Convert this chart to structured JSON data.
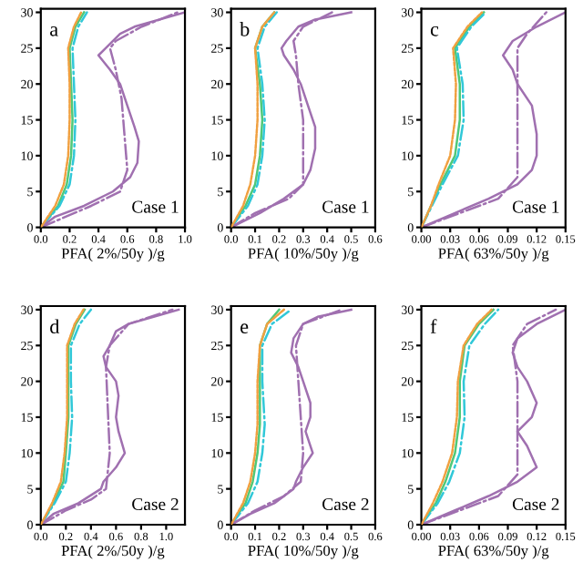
{
  "chart_data": [
    {
      "type": "line",
      "title": "a",
      "xlabel": "PFA( 2%/50y )/g",
      "annotations": [
        "Case 1"
      ],
      "xlim": [
        0,
        1.0
      ],
      "ylim": [
        0,
        30.5
      ],
      "xticks": [
        {
          "value": 0,
          "label": "0.0"
        },
        {
          "value": 0.2,
          "label": "0.2"
        },
        {
          "value": 0.4,
          "label": "0.4"
        },
        {
          "value": 0.6,
          "label": "0.6"
        },
        {
          "value": 0.8,
          "label": "0.8"
        },
        {
          "value": 1.0,
          "label": "1.0"
        }
      ],
      "yticks": [
        0,
        5,
        10,
        15,
        20,
        25,
        30
      ],
      "grid": false,
      "series": [
        {
          "color": "#f0a040",
          "line_style": "dashed",
          "x": [
            0,
            0.1,
            0.16,
            0.19,
            0.2,
            0.2,
            0.19,
            0.23,
            0.28
          ],
          "values": [
            0,
            3,
            6,
            10,
            15,
            20,
            25,
            28,
            30
          ]
        },
        {
          "color": "#50c878",
          "line_style": "solid",
          "x": [
            0,
            0.12,
            0.18,
            0.21,
            0.22,
            0.21,
            0.2,
            0.24,
            0.3
          ],
          "values": [
            0,
            3,
            6,
            10,
            15,
            20,
            25,
            28,
            30
          ]
        },
        {
          "color": "#30c8d8",
          "line_style": "dashdot",
          "x": [
            0,
            0.13,
            0.2,
            0.23,
            0.24,
            0.23,
            0.22,
            0.26,
            0.32
          ],
          "values": [
            0,
            3,
            6,
            10,
            15,
            20,
            25,
            28,
            30
          ]
        },
        {
          "color": "#a070b0",
          "line_style": "solid",
          "x": [
            0,
            0.1,
            0.3,
            0.5,
            0.62,
            0.67,
            0.68,
            0.65,
            0.6,
            0.55,
            0.48,
            0.4,
            0.45,
            0.55,
            0.65,
            1.0
          ],
          "values": [
            0,
            1.5,
            3,
            5,
            7,
            9,
            12,
            14,
            17,
            20,
            22,
            24,
            25,
            27,
            28,
            30
          ]
        },
        {
          "color": "#a070b0",
          "line_style": "dashdot",
          "x": [
            0,
            0.35,
            0.55,
            0.6,
            0.58,
            0.56,
            0.52,
            0.48,
            0.52,
            0.7,
            0.95
          ],
          "values": [
            0,
            3,
            5,
            8,
            13,
            18,
            22,
            25,
            26,
            28,
            30
          ]
        }
      ]
    },
    {
      "type": "line",
      "title": "b",
      "xlabel": "PFA( 10%/50y )/g",
      "annotations": [
        "Case 1"
      ],
      "xlim": [
        0,
        0.6
      ],
      "ylim": [
        0,
        30.5
      ],
      "xticks": [
        {
          "value": 0,
          "label": "0.0"
        },
        {
          "value": 0.1,
          "label": "0.1"
        },
        {
          "value": 0.2,
          "label": "0.2"
        },
        {
          "value": 0.3,
          "label": "0.3"
        },
        {
          "value": 0.4,
          "label": "0.4"
        },
        {
          "value": 0.5,
          "label": "0.5"
        },
        {
          "value": 0.6,
          "label": "0.6"
        }
      ],
      "yticks": [
        0,
        5,
        10,
        15,
        20,
        25,
        30
      ],
      "grid": false,
      "series": [
        {
          "color": "#f0a040",
          "line_style": "dashed",
          "x": [
            0,
            0.05,
            0.08,
            0.1,
            0.11,
            0.11,
            0.1,
            0.13,
            0.18
          ],
          "values": [
            0,
            3,
            6,
            10,
            15,
            20,
            25,
            28,
            30
          ]
        },
        {
          "color": "#50c878",
          "line_style": "solid",
          "x": [
            0,
            0.06,
            0.1,
            0.12,
            0.13,
            0.12,
            0.1,
            0.13,
            0.18
          ],
          "values": [
            0,
            3,
            6,
            10,
            15,
            20,
            25,
            28,
            30
          ]
        },
        {
          "color": "#30c8d8",
          "line_style": "dashdot",
          "x": [
            0,
            0.07,
            0.11,
            0.13,
            0.14,
            0.13,
            0.11,
            0.14,
            0.19
          ],
          "values": [
            0,
            3,
            6,
            10,
            15,
            20,
            25,
            28,
            30
          ]
        },
        {
          "color": "#a070b0",
          "line_style": "solid",
          "x": [
            0,
            0.12,
            0.22,
            0.3,
            0.33,
            0.35,
            0.35,
            0.32,
            0.29,
            0.26,
            0.22,
            0.21,
            0.23,
            0.28,
            0.35,
            0.5
          ],
          "values": [
            0,
            2,
            4,
            6,
            8,
            11,
            14,
            17,
            20,
            22,
            24,
            25,
            26,
            28,
            29,
            30
          ]
        },
        {
          "color": "#a070b0",
          "line_style": "dashdot",
          "x": [
            0,
            0.1,
            0.24,
            0.3,
            0.3,
            0.3,
            0.28,
            0.27,
            0.26,
            0.3,
            0.42
          ],
          "values": [
            0,
            2,
            4,
            6,
            10,
            15,
            20,
            24,
            26,
            28,
            30
          ]
        }
      ]
    },
    {
      "type": "line",
      "title": "c",
      "xlabel": "PFA( 63%/50y )/g",
      "annotations": [
        "Case 1"
      ],
      "xlim": [
        0,
        0.15
      ],
      "ylim": [
        0,
        30.5
      ],
      "xticks": [
        {
          "value": 0,
          "label": "0.00"
        },
        {
          "value": 0.03,
          "label": "0.03"
        },
        {
          "value": 0.06,
          "label": "0.06"
        },
        {
          "value": 0.09,
          "label": "0.09"
        },
        {
          "value": 0.12,
          "label": "0.12"
        },
        {
          "value": 0.15,
          "label": "0.15"
        }
      ],
      "yticks": [
        0,
        5,
        10,
        15,
        20,
        25,
        30
      ],
      "grid": false,
      "series": [
        {
          "color": "#f0a040",
          "line_style": "dashed",
          "x": [
            0,
            0.01,
            0.018,
            0.03,
            0.035,
            0.036,
            0.033,
            0.048,
            0.063
          ],
          "values": [
            0,
            3,
            6,
            10,
            15,
            20,
            25,
            28,
            30
          ]
        },
        {
          "color": "#50c878",
          "line_style": "solid",
          "x": [
            0,
            0.01,
            0.02,
            0.035,
            0.04,
            0.04,
            0.035,
            0.05,
            0.065
          ],
          "values": [
            0,
            3,
            6,
            10,
            15,
            20,
            25,
            28,
            30
          ]
        },
        {
          "color": "#30c8d8",
          "line_style": "dashdot",
          "x": [
            0,
            0.011,
            0.022,
            0.038,
            0.044,
            0.043,
            0.037,
            0.052,
            0.067
          ],
          "values": [
            0,
            3,
            6,
            10,
            15,
            20,
            25,
            28,
            30
          ]
        },
        {
          "color": "#a070b0",
          "line_style": "solid",
          "x": [
            0,
            0.035,
            0.07,
            0.1,
            0.115,
            0.12,
            0.12,
            0.115,
            0.1,
            0.095,
            0.085,
            0.095,
            0.12,
            0.15
          ],
          "values": [
            0,
            2,
            4,
            6,
            8,
            10,
            13,
            17,
            20,
            22,
            24,
            26,
            28,
            30
          ]
        },
        {
          "color": "#a070b0",
          "line_style": "dashdot",
          "x": [
            0,
            0.04,
            0.08,
            0.1,
            0.1,
            0.1,
            0.1,
            0.1,
            0.11,
            0.13
          ],
          "values": [
            0,
            2,
            4,
            7,
            10,
            15,
            20,
            25,
            27,
            30
          ]
        }
      ]
    },
    {
      "type": "line",
      "title": "d",
      "xlabel": "PFA( 2%/50y )/g",
      "annotations": [
        "Case 2"
      ],
      "xlim": [
        0,
        1.15
      ],
      "ylim": [
        0,
        30.5
      ],
      "xticks": [
        {
          "value": 0,
          "label": "0.0"
        },
        {
          "value": 0.2,
          "label": "0.2"
        },
        {
          "value": 0.4,
          "label": "0.4"
        },
        {
          "value": 0.6,
          "label": "0.6"
        },
        {
          "value": 0.8,
          "label": "0.8"
        },
        {
          "value": 1.0,
          "label": "1.0"
        }
      ],
      "yticks": [
        0,
        5,
        10,
        15,
        20,
        25,
        30
      ],
      "grid": false,
      "series": [
        {
          "color": "#f0a040",
          "line_style": "dashed",
          "x": [
            0,
            0.09,
            0.16,
            0.19,
            0.21,
            0.21,
            0.21,
            0.27,
            0.34
          ],
          "values": [
            0,
            3,
            6,
            10,
            15,
            20,
            25,
            28,
            30
          ]
        },
        {
          "color": "#50c878",
          "line_style": "solid",
          "x": [
            0,
            0.1,
            0.18,
            0.2,
            0.22,
            0.22,
            0.22,
            0.28,
            0.35
          ],
          "values": [
            0,
            3,
            6,
            10,
            15,
            20,
            25,
            28,
            30
          ]
        },
        {
          "color": "#30c8d8",
          "line_style": "dashdot",
          "x": [
            0,
            0.11,
            0.2,
            0.23,
            0.25,
            0.24,
            0.24,
            0.31,
            0.4
          ],
          "values": [
            0,
            3,
            6,
            10,
            15,
            20,
            25,
            28,
            30
          ]
        },
        {
          "color": "#a070b0",
          "line_style": "solid",
          "x": [
            0,
            0.1,
            0.3,
            0.48,
            0.5,
            0.6,
            0.67,
            0.62,
            0.6,
            0.62,
            0.6,
            0.52,
            0.5,
            0.55,
            0.6,
            0.7,
            0.9,
            1.1
          ],
          "values": [
            0,
            1.5,
            3,
            5,
            6,
            8,
            10,
            13,
            15,
            18,
            20,
            22,
            23.5,
            25,
            27,
            28,
            29,
            30
          ]
        },
        {
          "color": "#a070b0",
          "line_style": "dashdot",
          "x": [
            0,
            0.2,
            0.4,
            0.52,
            0.55,
            0.54,
            0.53,
            0.52,
            0.55,
            0.7,
            1.05
          ],
          "values": [
            0,
            2,
            3.5,
            5,
            10,
            14,
            18,
            22,
            25,
            28,
            30
          ]
        }
      ]
    },
    {
      "type": "line",
      "title": "e",
      "xlabel": "PFA( 10%/50y )/g",
      "annotations": [
        "Case 2"
      ],
      "xlim": [
        0,
        0.6
      ],
      "ylim": [
        0,
        30.5
      ],
      "xticks": [
        {
          "value": 0,
          "label": "0.0"
        },
        {
          "value": 0.1,
          "label": "0.1"
        },
        {
          "value": 0.2,
          "label": "0.2"
        },
        {
          "value": 0.3,
          "label": "0.3"
        },
        {
          "value": 0.4,
          "label": "0.4"
        },
        {
          "value": 0.5,
          "label": "0.5"
        },
        {
          "value": 0.6,
          "label": "0.6"
        }
      ],
      "yticks": [
        0,
        5,
        10,
        15,
        20,
        25,
        30
      ],
      "grid": false,
      "series": [
        {
          "color": "#f0a040",
          "line_style": "dashed",
          "x": [
            0,
            0.05,
            0.08,
            0.1,
            0.11,
            0.11,
            0.12,
            0.15,
            0.22
          ],
          "values": [
            0,
            3,
            6,
            10,
            14,
            20,
            25,
            28,
            30
          ]
        },
        {
          "color": "#50c878",
          "line_style": "solid",
          "x": [
            0,
            0.06,
            0.09,
            0.11,
            0.12,
            0.12,
            0.12,
            0.15,
            0.2
          ],
          "values": [
            0,
            3,
            6,
            10,
            14,
            20,
            25,
            28,
            30
          ]
        },
        {
          "color": "#30c8d8",
          "line_style": "dashdot",
          "x": [
            0,
            0.07,
            0.11,
            0.13,
            0.14,
            0.13,
            0.13,
            0.17,
            0.25
          ],
          "values": [
            0,
            3,
            6,
            10,
            14,
            20,
            25,
            28,
            30
          ]
        },
        {
          "color": "#a070b0",
          "line_style": "solid",
          "x": [
            0,
            0.08,
            0.18,
            0.26,
            0.27,
            0.3,
            0.34,
            0.31,
            0.33,
            0.33,
            0.3,
            0.28,
            0.25,
            0.26,
            0.3,
            0.36,
            0.5
          ],
          "values": [
            0,
            1.5,
            3,
            5,
            6,
            8,
            10,
            13,
            15,
            17,
            20,
            22,
            24,
            26,
            28,
            29,
            30
          ]
        },
        {
          "color": "#a070b0",
          "line_style": "dashdot",
          "x": [
            0,
            0.1,
            0.22,
            0.29,
            0.3,
            0.29,
            0.28,
            0.27,
            0.3,
            0.46
          ],
          "values": [
            0,
            2,
            4,
            6,
            10,
            15,
            20,
            25,
            28,
            30
          ]
        }
      ]
    },
    {
      "type": "line",
      "title": "f",
      "xlabel": "PFA( 63%/50y )/g",
      "annotations": [
        "Case 2"
      ],
      "xlim": [
        0,
        0.15
      ],
      "ylim": [
        0,
        30.5
      ],
      "xticks": [
        {
          "value": 0,
          "label": "0.00"
        },
        {
          "value": 0.03,
          "label": "0.03"
        },
        {
          "value": 0.06,
          "label": "0.06"
        },
        {
          "value": 0.09,
          "label": "0.09"
        },
        {
          "value": 0.12,
          "label": "0.12"
        },
        {
          "value": 0.15,
          "label": "0.15"
        }
      ],
      "yticks": [
        0,
        5,
        10,
        15,
        20,
        25,
        30
      ],
      "grid": false,
      "series": [
        {
          "color": "#f0a040",
          "line_style": "dashed",
          "x": [
            0,
            0.012,
            0.022,
            0.032,
            0.037,
            0.038,
            0.044,
            0.058,
            0.073
          ],
          "values": [
            0,
            3,
            6,
            10,
            15,
            20,
            25,
            28,
            30
          ]
        },
        {
          "color": "#50c878",
          "line_style": "solid",
          "x": [
            0,
            0.015,
            0.025,
            0.035,
            0.04,
            0.04,
            0.045,
            0.06,
            0.075
          ],
          "values": [
            0,
            3,
            6,
            10,
            15,
            20,
            25,
            28,
            30
          ]
        },
        {
          "color": "#30c8d8",
          "line_style": "dashdot",
          "x": [
            0,
            0.017,
            0.029,
            0.04,
            0.045,
            0.044,
            0.05,
            0.066,
            0.08
          ],
          "values": [
            0,
            3,
            6,
            10,
            15,
            20,
            25,
            28,
            30
          ]
        },
        {
          "color": "#a070b0",
          "line_style": "solid",
          "x": [
            0,
            0.035,
            0.07,
            0.1,
            0.12,
            0.11,
            0.1,
            0.115,
            0.12,
            0.11,
            0.1,
            0.095,
            0.1,
            0.12,
            0.15
          ],
          "values": [
            0,
            2,
            4,
            6,
            8,
            11,
            13,
            15,
            17,
            20,
            22,
            24,
            26,
            28,
            30
          ]
        },
        {
          "color": "#a070b0",
          "line_style": "dashdot",
          "x": [
            0,
            0.04,
            0.08,
            0.1,
            0.1,
            0.1,
            0.1,
            0.095,
            0.11,
            0.14
          ],
          "values": [
            0,
            2,
            4,
            7,
            10,
            15,
            20,
            25,
            28,
            30
          ]
        }
      ]
    }
  ]
}
